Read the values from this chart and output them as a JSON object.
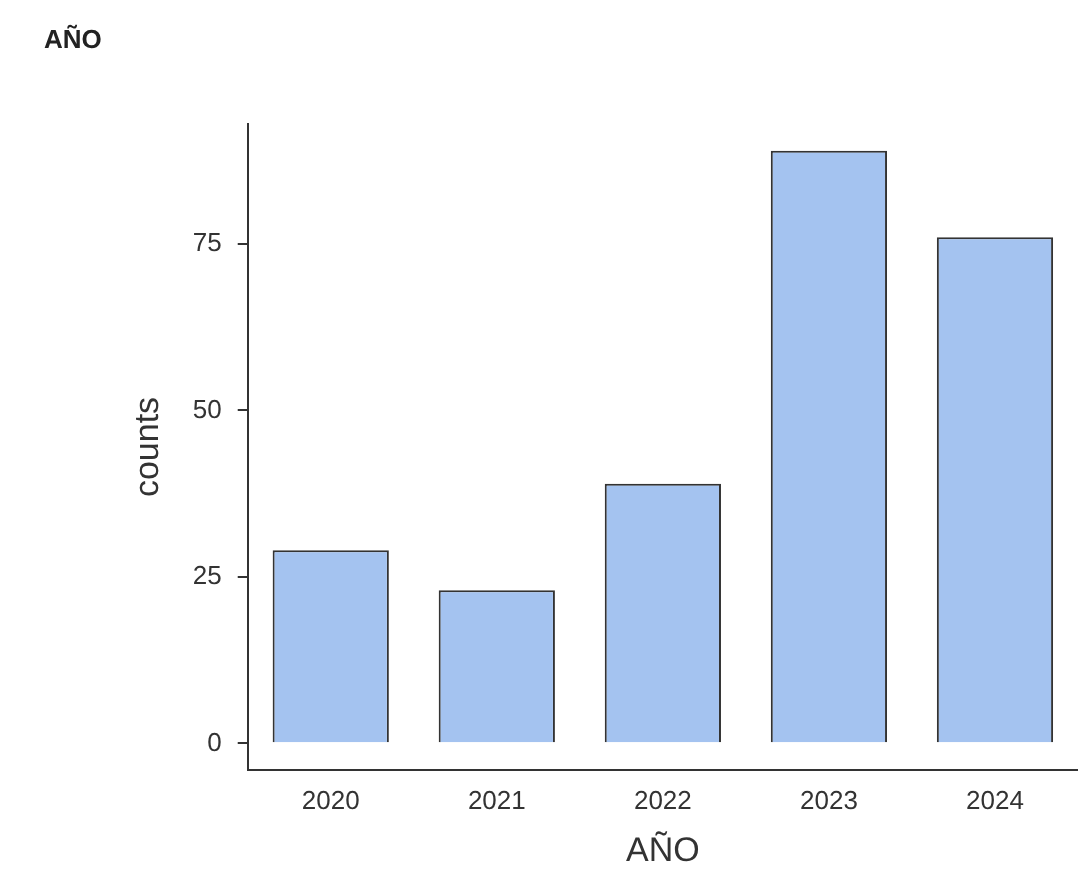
{
  "chart_data": {
    "type": "bar",
    "title": "AÑO",
    "xlabel": "AÑO",
    "ylabel": "counts",
    "categories": [
      "2020",
      "2021",
      "2022",
      "2023",
      "2024"
    ],
    "values": [
      29,
      23,
      39,
      89,
      76
    ],
    "color": "#a4c3f0",
    "ylim": [
      -4,
      93
    ],
    "yticks": [
      0,
      25,
      50,
      75
    ],
    "grid": false,
    "legend": false
  }
}
